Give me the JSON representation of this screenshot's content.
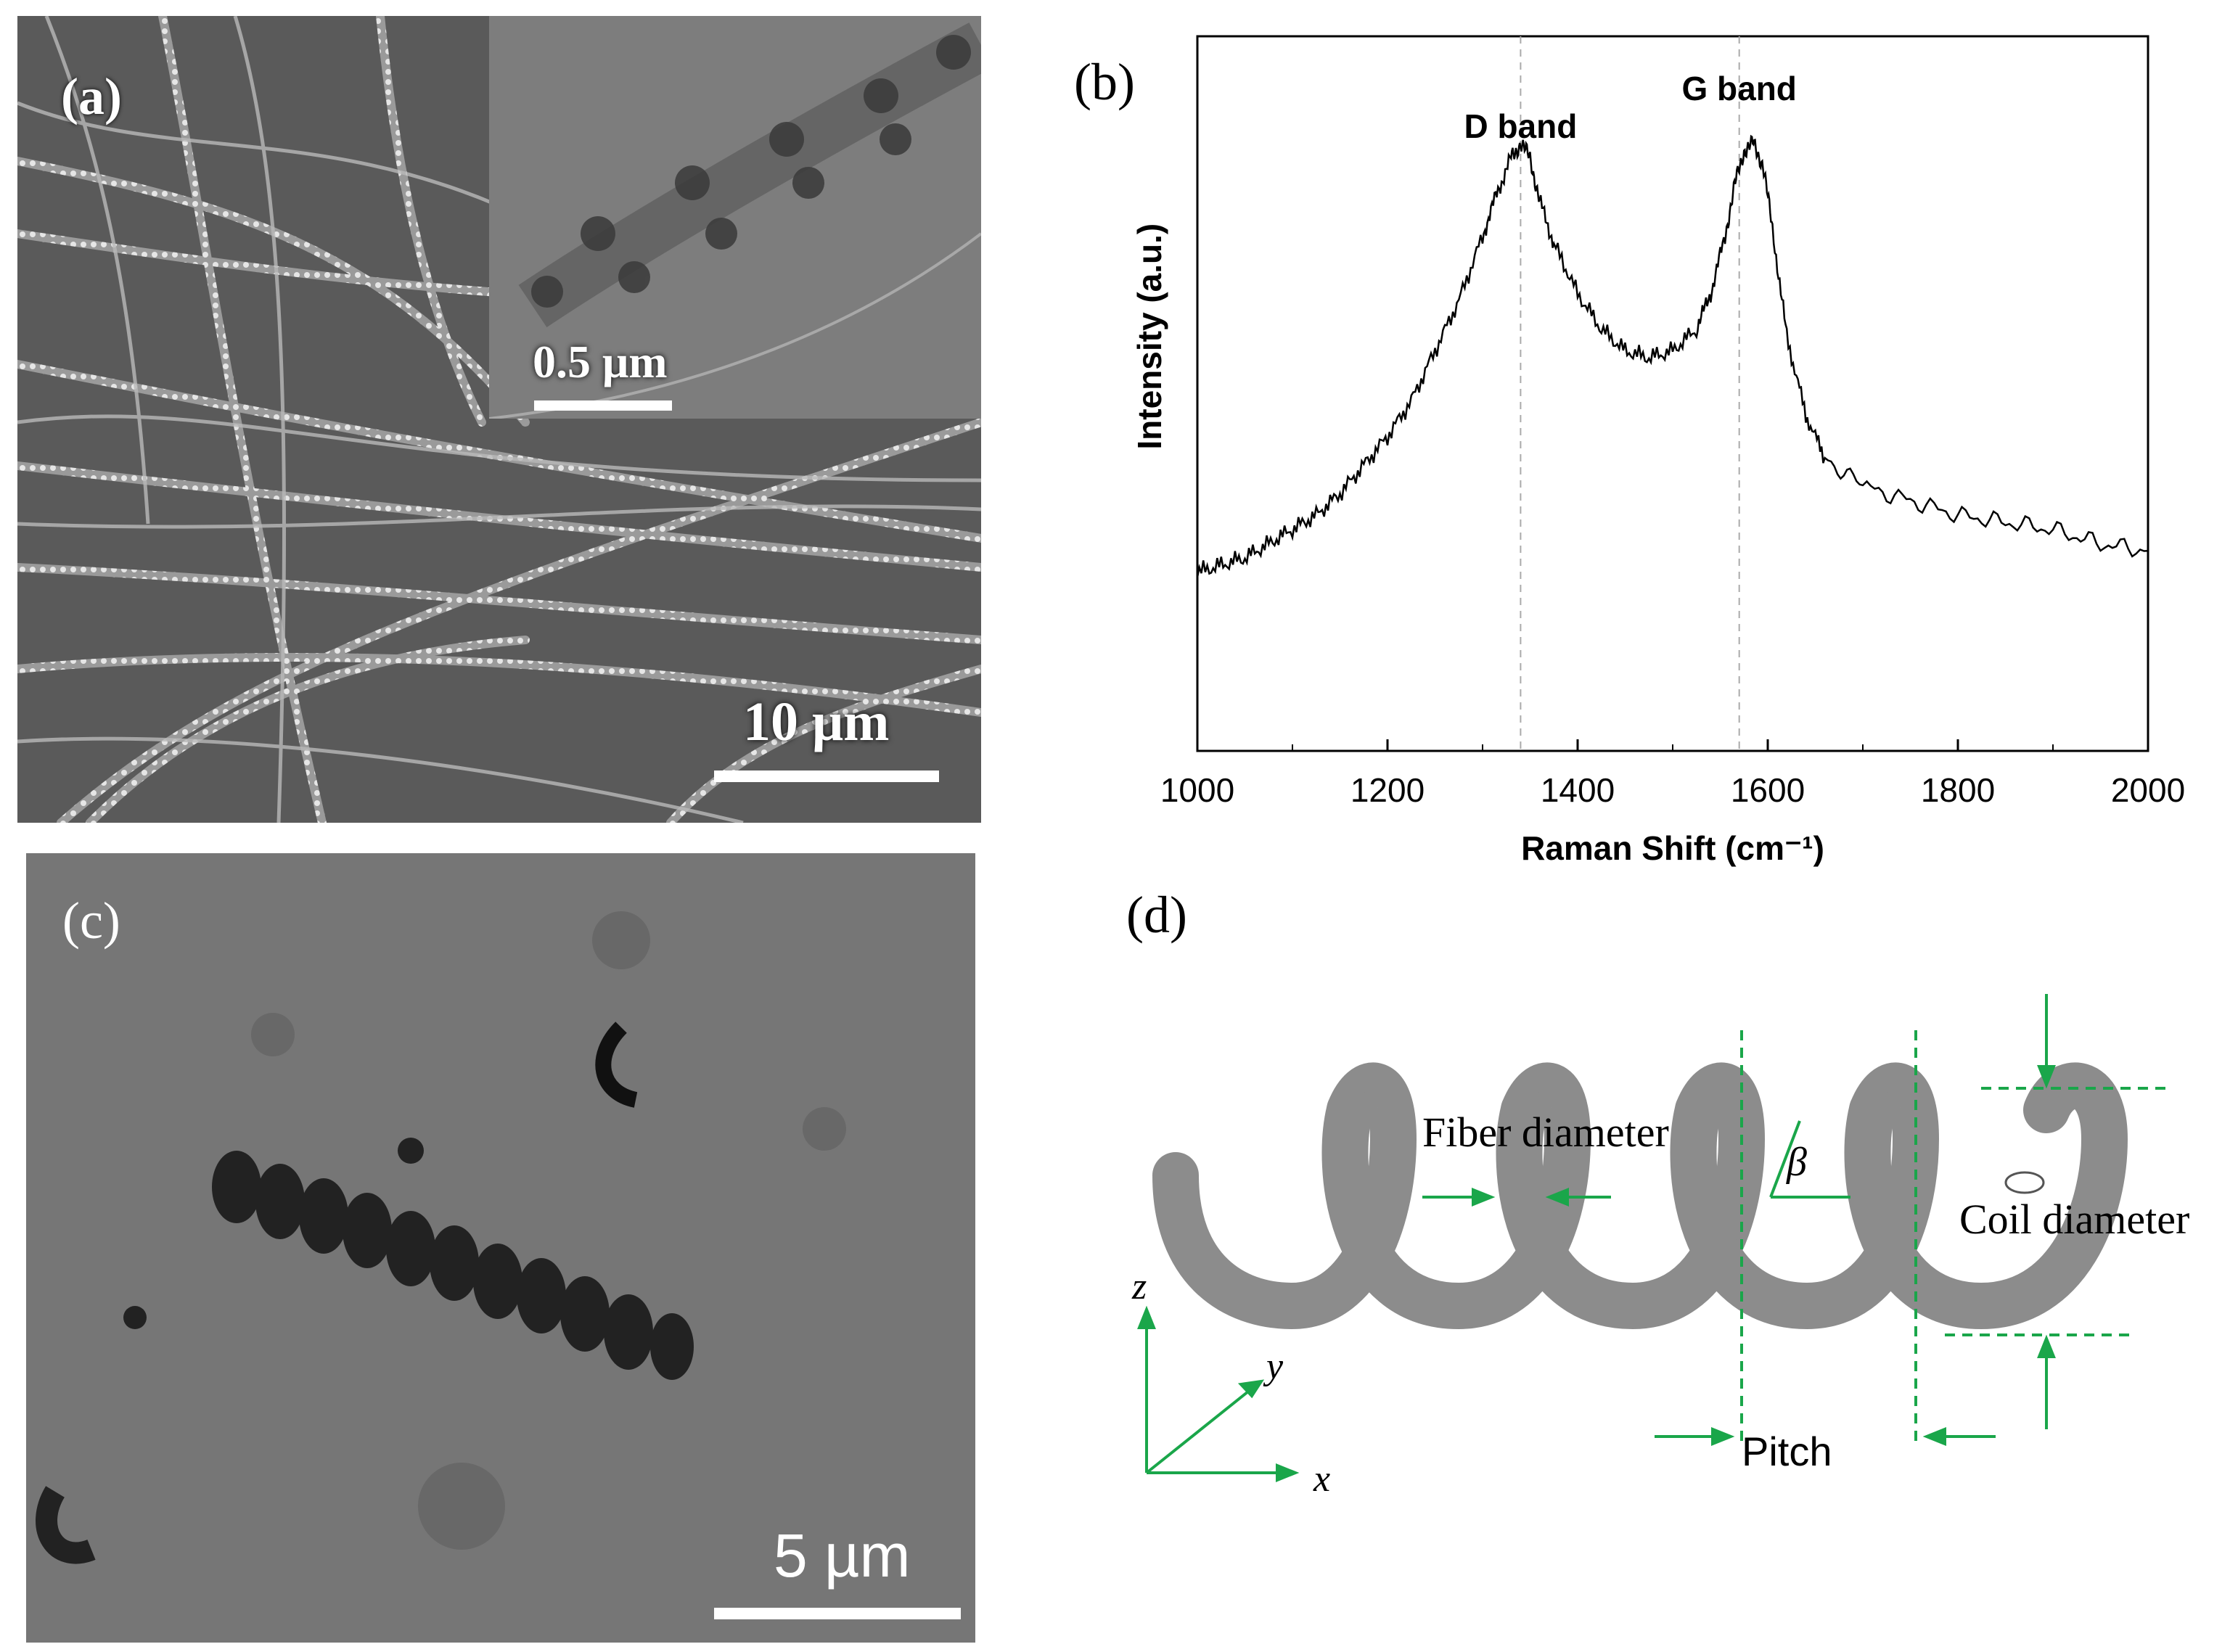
{
  "panel_a": {
    "label": "(a)",
    "scale_main": "10 μm",
    "inset_scale": "0.5 μm"
  },
  "panel_b": {
    "label": "(b)",
    "chart_data": {
      "type": "line",
      "xlabel": "Raman Shift (cm⁻¹)",
      "ylabel": "Intensity (a.u.)",
      "xlim": [
        1000,
        2000
      ],
      "ylim": [
        0,
        1
      ],
      "x_ticks": [
        1000,
        1200,
        1400,
        1600,
        1800,
        2000
      ],
      "annotations": [
        {
          "text": "D band",
          "x": 1340
        },
        {
          "text": "G band",
          "x": 1570
        }
      ],
      "series": [
        {
          "x": [
            1000,
            1025,
            1050,
            1075,
            1100,
            1125,
            1150,
            1175,
            1200,
            1225,
            1250,
            1275,
            1300,
            1315,
            1330,
            1340,
            1350,
            1360,
            1375,
            1400,
            1425,
            1450,
            1475,
            1500,
            1525,
            1540,
            1555,
            1565,
            1575,
            1585,
            1595,
            1605,
            1620,
            1640,
            1660,
            1700,
            1750,
            1800,
            1850,
            1900,
            1950,
            2000
          ],
          "values": [
            0.25,
            0.26,
            0.27,
            0.29,
            0.31,
            0.33,
            0.36,
            0.4,
            0.44,
            0.49,
            0.56,
            0.63,
            0.72,
            0.78,
            0.83,
            0.85,
            0.83,
            0.77,
            0.71,
            0.64,
            0.59,
            0.56,
            0.55,
            0.56,
            0.59,
            0.64,
            0.72,
            0.79,
            0.84,
            0.85,
            0.82,
            0.73,
            0.58,
            0.47,
            0.41,
            0.37,
            0.35,
            0.33,
            0.32,
            0.31,
            0.29,
            0.28
          ]
        }
      ]
    }
  },
  "panel_c": {
    "label": "(c)",
    "scale": "5 µm"
  },
  "panel_d": {
    "label": "(d)",
    "labels": {
      "fiber_diameter": "Fiber diameter",
      "coil_diameter": "Coil diameter",
      "pitch": "Pitch",
      "beta": "β",
      "axis_x": "x",
      "axis_y": "y",
      "axis_z": "z"
    },
    "colors": {
      "annotation": "#1aa64a",
      "coil": "#8a8a8a"
    }
  }
}
